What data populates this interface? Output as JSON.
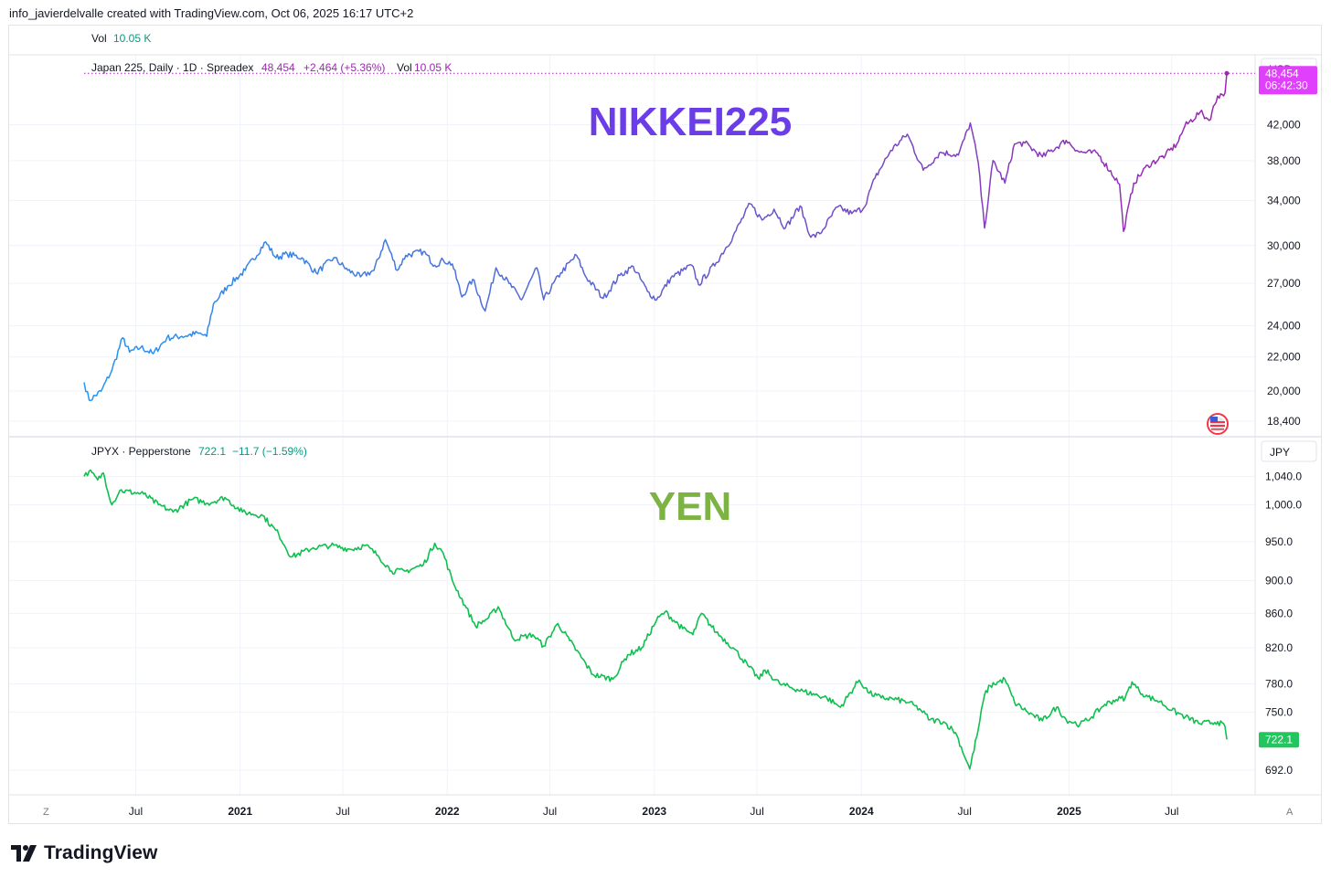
{
  "header": {
    "created_by": "info_javierdelvalle created with TradingView.com, Oct 06, 2025 16:17 UTC+2"
  },
  "volume": {
    "label": "Vol",
    "value": "10.05 K"
  },
  "top_pane": {
    "legend_title": "Japan 225, Daily · 1D · Spreadex",
    "last": "48,454",
    "change": "+2,464 (+5.36%)",
    "vol_label": "Vol",
    "vol_value": "10.05 K",
    "currency": "USD",
    "annotation": "NIKKEI225",
    "price_tag": "48,454",
    "countdown": "06:42:30",
    "colors": {
      "start": "#2196f3",
      "end": "#9c27b0",
      "annotation": "#6a3de8",
      "tag": "#e040fb"
    }
  },
  "bottom_pane": {
    "legend_title": "JPYX · Pepperstone",
    "last": "722.1",
    "change": "−11.7 (−1.59%)",
    "currency": "JPY",
    "annotation": "YEN",
    "price_tag": "722.1",
    "colors": {
      "line": "#0fbf4f",
      "annotation": "#7cb342",
      "tag": "#22c55e"
    }
  },
  "axis_buttons": {
    "left": "Z",
    "right": "A"
  },
  "brand": {
    "name": "TradingView"
  },
  "chart_data": [
    {
      "type": "line",
      "name": "Japan 225",
      "scale": "log",
      "currency": "USD",
      "ylim": [
        17800,
        50500
      ],
      "y_ticks": [
        {
          "value": 42000,
          "label": "42,000"
        },
        {
          "value": 38000,
          "label": "38,000"
        },
        {
          "value": 34000,
          "label": "34,000"
        },
        {
          "value": 30000,
          "label": "30,000"
        },
        {
          "value": 27000,
          "label": "27,000"
        },
        {
          "value": 24000,
          "label": "24,000"
        },
        {
          "value": 22000,
          "label": "22,000"
        },
        {
          "value": 20000,
          "label": "20,000"
        },
        {
          "value": 18400,
          "label": "18,400"
        }
      ],
      "x_range": [
        "2020-04-01",
        "2025-11-25"
      ],
      "points": [
        [
          "2020-04-01",
          20500
        ],
        [
          "2020-04-10",
          19500
        ],
        [
          "2020-05-01",
          20000
        ],
        [
          "2020-05-20",
          21200
        ],
        [
          "2020-06-08",
          23200
        ],
        [
          "2020-06-20",
          22300
        ],
        [
          "2020-07-10",
          22600
        ],
        [
          "2020-08-01",
          22200
        ],
        [
          "2020-08-25",
          23200
        ],
        [
          "2020-09-20",
          23300
        ],
        [
          "2020-10-20",
          23500
        ],
        [
          "2020-11-03",
          23300
        ],
        [
          "2020-11-15",
          25500
        ],
        [
          "2020-12-10",
          26800
        ],
        [
          "2021-01-10",
          28000
        ],
        [
          "2021-02-15",
          30300
        ],
        [
          "2021-03-05",
          29000
        ],
        [
          "2021-03-25",
          29300
        ],
        [
          "2021-04-20",
          29000
        ],
        [
          "2021-05-15",
          27800
        ],
        [
          "2021-06-15",
          29000
        ],
        [
          "2021-07-10",
          28000
        ],
        [
          "2021-08-01",
          27500
        ],
        [
          "2021-08-25",
          28000
        ],
        [
          "2021-09-14",
          30500
        ],
        [
          "2021-10-05",
          28000
        ],
        [
          "2021-10-20",
          29200
        ],
        [
          "2021-11-20",
          29500
        ],
        [
          "2021-12-10",
          28400
        ],
        [
          "2021-12-25",
          28800
        ],
        [
          "2022-01-10",
          28500
        ],
        [
          "2022-01-27",
          26000
        ],
        [
          "2022-02-15",
          27300
        ],
        [
          "2022-03-09",
          25000
        ],
        [
          "2022-03-28",
          28200
        ],
        [
          "2022-04-20",
          27000
        ],
        [
          "2022-05-12",
          25800
        ],
        [
          "2022-06-08",
          28200
        ],
        [
          "2022-06-20",
          25800
        ],
        [
          "2022-07-20",
          27800
        ],
        [
          "2022-08-17",
          29200
        ],
        [
          "2022-09-01",
          27600
        ],
        [
          "2022-10-03",
          25900
        ],
        [
          "2022-11-01",
          27600
        ],
        [
          "2022-11-25",
          28300
        ],
        [
          "2022-12-20",
          26400
        ],
        [
          "2023-01-05",
          25800
        ],
        [
          "2023-01-30",
          27400
        ],
        [
          "2023-03-08",
          28400
        ],
        [
          "2023-03-20",
          26900
        ],
        [
          "2023-04-20",
          28600
        ],
        [
          "2023-05-20",
          30800
        ],
        [
          "2023-06-19",
          33700
        ],
        [
          "2023-07-10",
          32200
        ],
        [
          "2023-07-31",
          33200
        ],
        [
          "2023-08-20",
          31500
        ],
        [
          "2023-09-15",
          33500
        ],
        [
          "2023-10-04",
          30700
        ],
        [
          "2023-10-20",
          31000
        ],
        [
          "2023-11-20",
          33400
        ],
        [
          "2023-12-15",
          32800
        ],
        [
          "2024-01-05",
          33300
        ],
        [
          "2024-01-25",
          36200
        ],
        [
          "2024-02-22",
          39100
        ],
        [
          "2024-03-22",
          40900
        ],
        [
          "2024-04-19",
          37000
        ],
        [
          "2024-05-20",
          38900
        ],
        [
          "2024-06-20",
          38600
        ],
        [
          "2024-07-11",
          42200
        ],
        [
          "2024-07-25",
          37800
        ],
        [
          "2024-08-05",
          31500
        ],
        [
          "2024-08-20",
          38000
        ],
        [
          "2024-09-10",
          35700
        ],
        [
          "2024-09-27",
          39800
        ],
        [
          "2024-10-15",
          39900
        ],
        [
          "2024-11-15",
          38400
        ],
        [
          "2024-12-27",
          40200
        ],
        [
          "2025-01-20",
          38900
        ],
        [
          "2025-02-20",
          38800
        ],
        [
          "2025-03-31",
          35600
        ],
        [
          "2025-04-07",
          31200
        ],
        [
          "2025-04-25",
          35700
        ],
        [
          "2025-05-20",
          37500
        ],
        [
          "2025-06-20",
          38600
        ],
        [
          "2025-07-10",
          39800
        ],
        [
          "2025-07-24",
          41800
        ],
        [
          "2025-08-20",
          43500
        ],
        [
          "2025-09-05",
          42500
        ],
        [
          "2025-09-20",
          45500
        ],
        [
          "2025-10-03",
          45900
        ],
        [
          "2025-10-06",
          48454
        ]
      ]
    },
    {
      "type": "line",
      "name": "JPYX",
      "scale": "log",
      "currency": "JPY",
      "ylim": [
        672,
        1062
      ],
      "y_ticks": [
        {
          "value": 1040,
          "label": "1,040.0"
        },
        {
          "value": 1000,
          "label": "1,000.0"
        },
        {
          "value": 950,
          "label": "950.0"
        },
        {
          "value": 900,
          "label": "900.0"
        },
        {
          "value": 860,
          "label": "860.0"
        },
        {
          "value": 820,
          "label": "820.0"
        },
        {
          "value": 780,
          "label": "780.0"
        },
        {
          "value": 750,
          "label": "750.0"
        },
        {
          "value": 692,
          "label": "692.0"
        }
      ],
      "x_range": [
        "2020-04-01",
        "2025-11-25"
      ],
      "points": [
        [
          "2020-04-01",
          1040
        ],
        [
          "2020-04-10",
          1048
        ],
        [
          "2020-04-25",
          1035
        ],
        [
          "2020-05-05",
          1045
        ],
        [
          "2020-05-20",
          1000
        ],
        [
          "2020-06-03",
          1020
        ],
        [
          "2020-07-15",
          1015
        ],
        [
          "2020-08-10",
          1000
        ],
        [
          "2020-09-05",
          990
        ],
        [
          "2020-10-10",
          1008
        ],
        [
          "2020-11-05",
          1002
        ],
        [
          "2020-12-05",
          1010
        ],
        [
          "2021-01-05",
          990
        ],
        [
          "2021-02-10",
          985
        ],
        [
          "2021-03-10",
          960
        ],
        [
          "2021-04-01",
          930
        ],
        [
          "2021-05-10",
          942
        ],
        [
          "2021-06-10",
          945
        ],
        [
          "2021-07-15",
          940
        ],
        [
          "2021-08-10",
          945
        ],
        [
          "2021-09-01",
          932
        ],
        [
          "2021-09-25",
          912
        ],
        [
          "2021-10-20",
          912
        ],
        [
          "2021-11-20",
          920
        ],
        [
          "2021-12-10",
          948
        ],
        [
          "2021-12-25",
          935
        ],
        [
          "2022-01-10",
          900
        ],
        [
          "2022-02-01",
          870
        ],
        [
          "2022-02-20",
          845
        ],
        [
          "2022-03-15",
          855
        ],
        [
          "2022-04-01",
          868
        ],
        [
          "2022-04-28",
          830
        ],
        [
          "2022-06-01",
          835
        ],
        [
          "2022-06-20",
          822
        ],
        [
          "2022-07-15",
          848
        ],
        [
          "2022-08-05",
          828
        ],
        [
          "2022-09-15",
          790
        ],
        [
          "2022-10-20",
          785
        ],
        [
          "2022-11-15",
          812
        ],
        [
          "2022-12-10",
          820
        ],
        [
          "2023-01-05",
          852
        ],
        [
          "2023-01-20",
          862
        ],
        [
          "2023-02-20",
          842
        ],
        [
          "2023-03-10",
          835
        ],
        [
          "2023-03-25",
          860
        ],
        [
          "2023-04-20",
          838
        ],
        [
          "2023-05-20",
          820
        ],
        [
          "2023-06-15",
          800
        ],
        [
          "2023-07-05",
          785
        ],
        [
          "2023-07-15",
          795
        ],
        [
          "2023-08-10",
          780
        ],
        [
          "2023-09-20",
          772
        ],
        [
          "2023-11-01",
          765
        ],
        [
          "2023-11-25",
          755
        ],
        [
          "2023-12-28",
          784
        ],
        [
          "2024-01-15",
          770
        ],
        [
          "2024-02-05",
          765
        ],
        [
          "2024-02-25",
          764
        ],
        [
          "2024-03-25",
          760
        ],
        [
          "2024-04-15",
          752
        ],
        [
          "2024-05-01",
          742
        ],
        [
          "2024-05-25",
          740
        ],
        [
          "2024-06-15",
          729
        ],
        [
          "2024-07-05",
          700
        ],
        [
          "2024-07-10",
          693
        ],
        [
          "2024-07-25",
          732
        ],
        [
          "2024-08-05",
          768
        ],
        [
          "2024-08-15",
          778
        ],
        [
          "2024-09-10",
          785
        ],
        [
          "2024-09-27",
          760
        ],
        [
          "2024-10-20",
          750
        ],
        [
          "2024-11-15",
          741
        ],
        [
          "2024-12-10",
          755
        ],
        [
          "2024-12-27",
          742
        ],
        [
          "2025-01-20",
          737
        ],
        [
          "2025-02-10",
          745
        ],
        [
          "2025-03-05",
          758
        ],
        [
          "2025-03-25",
          763
        ],
        [
          "2025-04-10",
          765
        ],
        [
          "2025-04-22",
          782
        ],
        [
          "2025-05-05",
          772
        ],
        [
          "2025-05-20",
          766
        ],
        [
          "2025-06-10",
          761
        ],
        [
          "2025-07-01",
          752
        ],
        [
          "2025-07-25",
          745
        ],
        [
          "2025-08-20",
          738
        ],
        [
          "2025-09-20",
          740
        ],
        [
          "2025-10-03",
          735
        ],
        [
          "2025-10-06",
          722.1
        ]
      ]
    }
  ],
  "x_axis": {
    "ticks": [
      {
        "date": "2020-07-01",
        "label": "Jul",
        "bold": false
      },
      {
        "date": "2021-01-01",
        "label": "2021",
        "bold": true
      },
      {
        "date": "2021-07-01",
        "label": "Jul",
        "bold": false
      },
      {
        "date": "2022-01-01",
        "label": "2022",
        "bold": true
      },
      {
        "date": "2022-07-01",
        "label": "Jul",
        "bold": false
      },
      {
        "date": "2023-01-01",
        "label": "2023",
        "bold": true
      },
      {
        "date": "2023-07-01",
        "label": "Jul",
        "bold": false
      },
      {
        "date": "2024-01-01",
        "label": "2024",
        "bold": true
      },
      {
        "date": "2024-07-01",
        "label": "Jul",
        "bold": false
      },
      {
        "date": "2025-01-01",
        "label": "2025",
        "bold": true
      },
      {
        "date": "2025-07-01",
        "label": "Jul",
        "bold": false
      }
    ]
  }
}
